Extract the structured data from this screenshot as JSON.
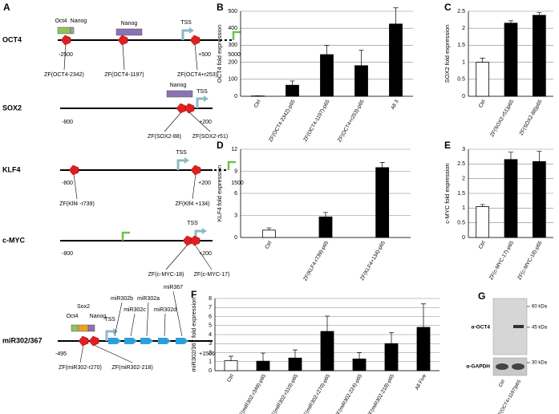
{
  "diagram": {
    "panel": "A",
    "rows": [
      {
        "gene": "OCT4",
        "start": "-2500",
        "end": "+500",
        "extra": "5000",
        "tss": "TSS",
        "boxes": [
          "Oct4",
          "Nanog",
          "Nanog"
        ],
        "sites": [
          "ZF(OCT4-2342)",
          "ZF(OCT4-1197)",
          "ZF(OCT4+r253)"
        ]
      },
      {
        "gene": "SOX2",
        "start": "-800",
        "end": "+200",
        "tss": "TSS",
        "boxes": [
          "Nanog"
        ],
        "sites": [
          "ZF(SOX2-88)",
          "ZF(SOX2-r51)"
        ]
      },
      {
        "gene": "KLF4",
        "start": "-800",
        "end": "+200",
        "extra": "1500",
        "tss": "TSS",
        "sites": [
          "ZF(Klf4 -r739)",
          "ZF(Klf4 +134)"
        ]
      },
      {
        "gene": "c-MYC",
        "start": "-800",
        "end": "+200",
        "tss": "TSS",
        "sites": [
          "ZF(c-MYC-18)",
          "ZF(c-MYC-17)"
        ]
      },
      {
        "gene": "miR302/367",
        "start": "-495",
        "end": "+1506",
        "tss": "TSS",
        "boxes": [
          "Oct4",
          "Sox2",
          "Nanog"
        ],
        "sites": [
          "ZF(miR302-r270)",
          "ZF(miR302-218)"
        ],
        "mirs": [
          "miR302b",
          "miR302c",
          "miR302a",
          "miR302d",
          "miR367"
        ]
      }
    ]
  },
  "chart_data": [
    {
      "type": "bar",
      "panel": "B",
      "ylabel": "OCT4 fold expression",
      "categories": [
        "Ctrl",
        "ZF(OCT4-2342)-p65",
        "ZF(OCT4-1197)-p65",
        "ZF(OCT4+r253)-p65",
        "All 3"
      ],
      "values": [
        2,
        65,
        245,
        180,
        425
      ],
      "errors": [
        1,
        25,
        55,
        90,
        95
      ],
      "colors": [
        "#ffffff",
        "#000000",
        "#000000",
        "#000000",
        "#000000"
      ],
      "ylim": [
        0,
        500
      ],
      "yticks": [
        0,
        100,
        200,
        300,
        400,
        500
      ],
      "grid": true
    },
    {
      "type": "bar",
      "panel": "C",
      "ylabel": "SOX2 fold expression",
      "categories": [
        "Ctrl",
        "ZF(SOX2-r51)p65",
        "ZF(SOX2-88)p65"
      ],
      "values": [
        1.0,
        2.15,
        2.38
      ],
      "errors": [
        0.12,
        0.07,
        0.08
      ],
      "colors": [
        "#ffffff",
        "#000000",
        "#000000"
      ],
      "ylim": [
        0,
        2.5
      ],
      "yticks": [
        0,
        0.5,
        1,
        1.5,
        2,
        2.5
      ],
      "grid": true
    },
    {
      "type": "bar",
      "panel": "D",
      "ylabel": "KLF4 fold expression",
      "categories": [
        "Ctrl",
        "ZF(KLF4-r739)-p65",
        "ZF(KLF4+134)-p65"
      ],
      "values": [
        1.0,
        2.8,
        9.5
      ],
      "errors": [
        0.3,
        0.6,
        0.7
      ],
      "colors": [
        "#ffffff",
        "#000000",
        "#000000"
      ],
      "ylim": [
        0,
        12
      ],
      "yticks": [
        0,
        3,
        6,
        9,
        12
      ],
      "grid": true
    },
    {
      "type": "bar",
      "panel": "E",
      "ylabel": "c-MYC fold expression",
      "categories": [
        "Ctrl",
        "ZF(c-MYC-17)-p65",
        "ZF(c-MYC-18)-p65"
      ],
      "values": [
        1.05,
        2.65,
        2.58
      ],
      "errors": [
        0.07,
        0.25,
        0.35
      ],
      "colors": [
        "#ffffff",
        "#000000",
        "#000000"
      ],
      "ylim": [
        0,
        3
      ],
      "yticks": [
        0,
        0.5,
        1,
        1.5,
        2,
        2.5,
        3
      ],
      "grid": true
    },
    {
      "type": "bar",
      "panel": "F",
      "ylabel": "miR302/367 fold expression",
      "categories": [
        "Ctrl",
        "ZF(miR302-r349)-p65",
        "ZF(miR302-r310)-p65",
        "ZF(miR302-r270)-p65",
        "ZF(miR302-224)-p65",
        "ZF(miR302-218)-p65",
        "All Five"
      ],
      "values": [
        1.1,
        1.05,
        1.4,
        4.35,
        1.3,
        3.0,
        4.8
      ],
      "errors": [
        0.5,
        0.9,
        0.9,
        1.7,
        0.7,
        1.2,
        2.6
      ],
      "colors": [
        "#ffffff",
        "#000000",
        "#000000",
        "#000000",
        "#000000",
        "#000000",
        "#000000"
      ],
      "ylim": [
        0,
        8
      ],
      "yticks": [
        0,
        1,
        2,
        3,
        4,
        5,
        6,
        7,
        8
      ],
      "grid": true
    }
  ],
  "blot": {
    "panel": "G",
    "markers": [
      "60 kDa",
      "45 kDa",
      "30 kDa"
    ],
    "antibodies": [
      "α-OCT4",
      "α-GAPDH"
    ],
    "lanes": [
      "Ctrl",
      "ZF(OCT4+1197)p65"
    ]
  }
}
